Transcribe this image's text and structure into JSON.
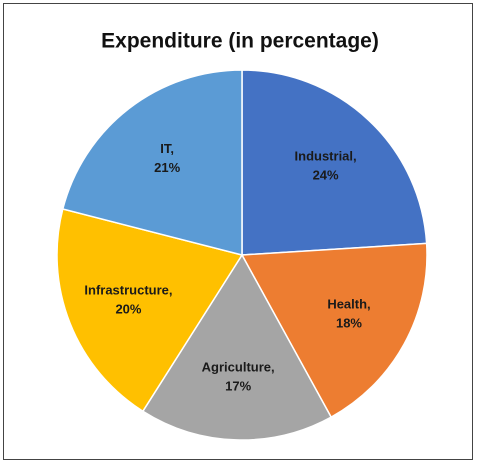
{
  "chart_data": {
    "type": "pie",
    "title": "Expenditure (in percentage)",
    "categories": [
      "Industrial,",
      "Health,",
      "Agriculture,",
      "Infrastructure,",
      "IT,"
    ],
    "values": [
      24,
      18,
      17,
      20,
      21
    ],
    "value_labels": [
      "24%",
      "18%",
      "17%",
      "20%",
      "21%"
    ],
    "colors": [
      "#4472c4",
      "#ed7d31",
      "#a5a5a5",
      "#ffc000",
      "#5b9bd5"
    ]
  }
}
